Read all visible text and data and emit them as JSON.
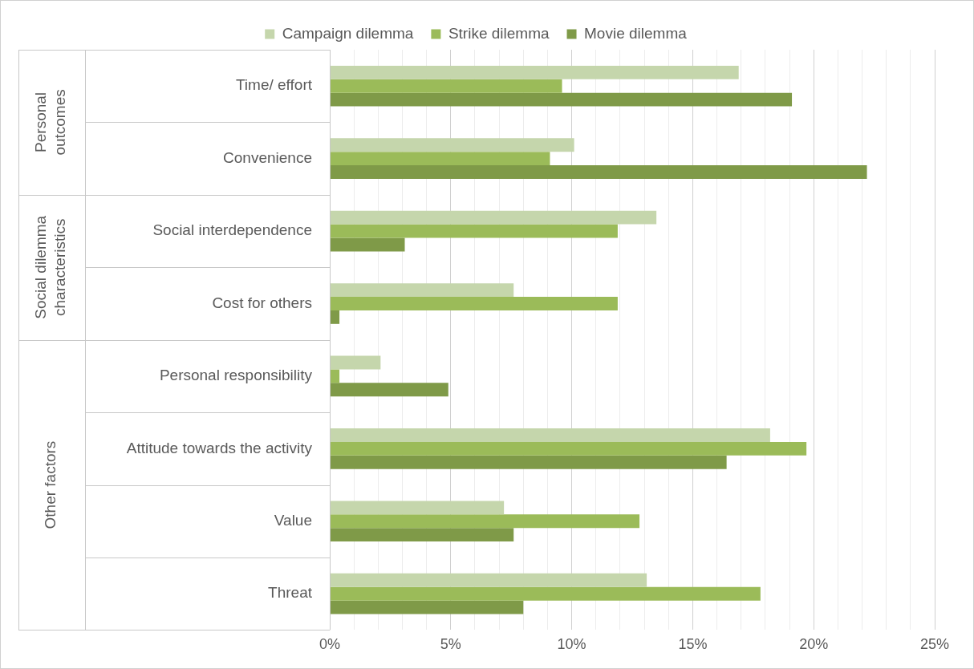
{
  "chart_data": {
    "type": "bar",
    "orientation": "horizontal",
    "categories": [
      "Time/ effort",
      "Convenience",
      "Social interdependence",
      "Cost for others",
      "Personal responsibility",
      "Attitude towards the activity",
      "Value",
      "Threat"
    ],
    "series": [
      {
        "name": "Campaign dilemma",
        "color": "#c5d6ac",
        "values": [
          16.9,
          10.1,
          13.5,
          7.6,
          2.1,
          18.2,
          7.2,
          13.1
        ]
      },
      {
        "name": "Strike dilemma",
        "color": "#9bbb59",
        "values": [
          9.6,
          9.1,
          11.9,
          11.9,
          0.4,
          19.7,
          12.8,
          17.8
        ]
      },
      {
        "name": "Movie dilemma",
        "color": "#7f9a48",
        "values": [
          19.1,
          22.2,
          3.1,
          0.4,
          4.9,
          16.4,
          7.6,
          8.0
        ]
      }
    ],
    "xlim": [
      0,
      25
    ],
    "xticks": [
      {
        "value": 0,
        "label": "0%"
      },
      {
        "value": 1,
        "label": null
      },
      {
        "value": 2,
        "label": null
      },
      {
        "value": 3,
        "label": null
      },
      {
        "value": 4,
        "label": null
      },
      {
        "value": 5,
        "label": "5%"
      },
      {
        "value": 6,
        "label": null
      },
      {
        "value": 7,
        "label": null
      },
      {
        "value": 8,
        "label": null
      },
      {
        "value": 9,
        "label": null
      },
      {
        "value": 10,
        "label": "10%"
      },
      {
        "value": 11,
        "label": null
      },
      {
        "value": 12,
        "label": null
      },
      {
        "value": 13,
        "label": null
      },
      {
        "value": 14,
        "label": null
      },
      {
        "value": 15,
        "label": "15%"
      },
      {
        "value": 16,
        "label": null
      },
      {
        "value": 17,
        "label": null
      },
      {
        "value": 18,
        "label": null
      },
      {
        "value": 19,
        "label": null
      },
      {
        "value": 20,
        "label": "20%"
      },
      {
        "value": 21,
        "label": null
      },
      {
        "value": 22,
        "label": null
      },
      {
        "value": 23,
        "label": null
      },
      {
        "value": 24,
        "label": null
      },
      {
        "value": 25,
        "label": "25%"
      }
    ],
    "annotations": [
      "Personal\noutcomes",
      "Social dilemma\ncharacteristics",
      "Other factors"
    ],
    "grid": "x",
    "legend": "top"
  }
}
